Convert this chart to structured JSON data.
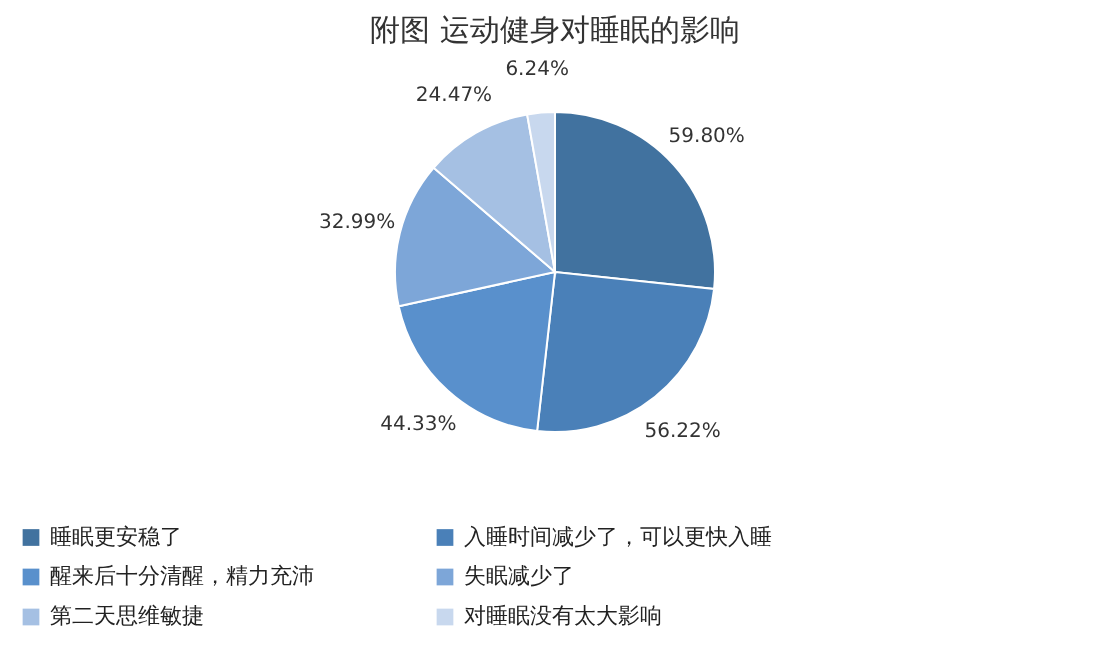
{
  "chart_data": {
    "type": "pie",
    "title": "附图 运动健身对睡眠的影响",
    "categories": [
      "睡眠更安稳了",
      "入睡时间减少了，可以更快入睡",
      "醒来后十分清醒，精力充沛",
      "失眠减少了",
      "第二天思维敏捷",
      "对睡眠没有太大影响"
    ],
    "values": [
      59.8,
      56.22,
      44.33,
      32.99,
      24.47,
      6.24
    ],
    "value_labels": [
      "59.80%",
      "56.22%",
      "44.33%",
      "32.99%",
      "24.47%",
      "6.24%"
    ],
    "colors": [
      "#41729f",
      "#4a80b8",
      "#5990cc",
      "#7da6d8",
      "#a5c0e3",
      "#c8d8ee"
    ],
    "legend": "bottom"
  }
}
